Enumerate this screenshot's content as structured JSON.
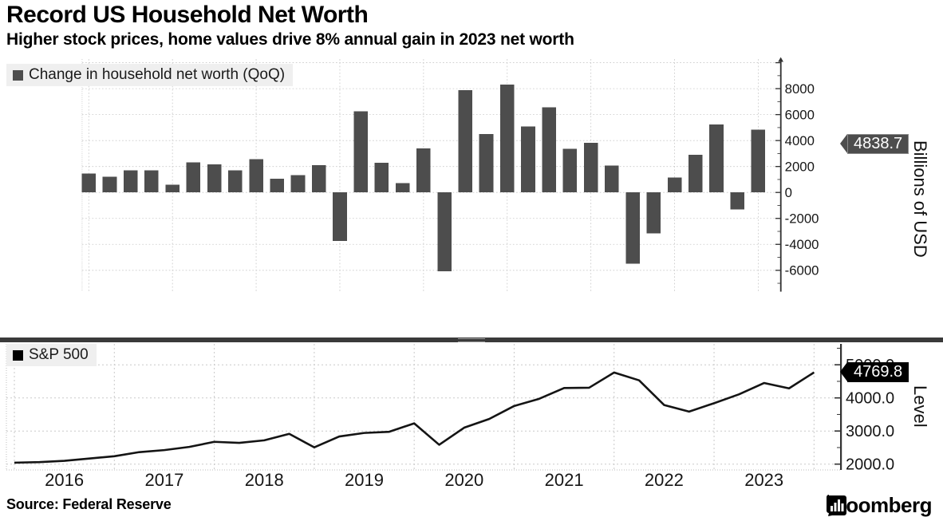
{
  "header": {
    "title": "Record US Household Net Worth",
    "subtitle": "Higher stock prices, home values drive 8% annual gain in 2023 net worth"
  },
  "footer": {
    "source": "Source: Federal Reserve",
    "brand": "Bloomberg",
    "brand_icon": "bloomberg-bug-icon"
  },
  "colors": {
    "bar": "#4d4d4d",
    "line": "#141414",
    "tag_top_bg": "#4d4d4d",
    "tag_bottom_bg": "#000000",
    "grid": "#c9c9c9",
    "axis": "#333333",
    "legend_bg": "#efefef",
    "separator": "#3a3a3a"
  },
  "x_axis": {
    "year_labels": [
      "2016",
      "2017",
      "2018",
      "2019",
      "2020",
      "2021",
      "2022",
      "2023"
    ]
  },
  "chart_data": [
    {
      "type": "bar",
      "legend": "Change in household net worth (QoQ)",
      "ylabel": "Billions of USD",
      "last_value_tag": "4838.7",
      "grid": true,
      "legend_position": "top-left",
      "ylim": [
        -7700,
        10300
      ],
      "yticks": [
        8000,
        6000,
        4000,
        2000,
        0,
        -2000,
        -4000,
        -6000
      ],
      "x": [
        "2015-Q4",
        "2016-Q1",
        "2016-Q2",
        "2016-Q3",
        "2016-Q4",
        "2017-Q1",
        "2017-Q2",
        "2017-Q3",
        "2017-Q4",
        "2018-Q1",
        "2018-Q2",
        "2018-Q3",
        "2018-Q4",
        "2019-Q1",
        "2019-Q2",
        "2019-Q3",
        "2019-Q4",
        "2020-Q1",
        "2020-Q2",
        "2020-Q3",
        "2020-Q4",
        "2021-Q1",
        "2021-Q2",
        "2021-Q3",
        "2021-Q4",
        "2022-Q1",
        "2022-Q2",
        "2022-Q3",
        "2022-Q4",
        "2023-Q1",
        "2023-Q2",
        "2023-Q3",
        "2023-Q4"
      ],
      "values": [
        1450,
        1200,
        1700,
        1700,
        600,
        2330,
        2160,
        1700,
        2560,
        1050,
        1320,
        2090,
        -3730,
        6240,
        2280,
        720,
        3410,
        -6070,
        7870,
        4490,
        8300,
        5080,
        6550,
        3360,
        3840,
        2080,
        -5500,
        -3160,
        1150,
        2910,
        5240,
        -1310,
        4838.7
      ]
    },
    {
      "type": "line",
      "legend": "S&P 500",
      "ylabel": "Level",
      "last_value_tag": "4769.8",
      "grid": true,
      "legend_position": "top-left",
      "ylim": [
        1820,
        5620
      ],
      "yticks": [
        5000,
        4000,
        3000,
        2000
      ],
      "ytick_labels": [
        "5000.0",
        "4000.0",
        "3000.0",
        "2000.0"
      ],
      "x": [
        "2015-Q4",
        "2016-Q1",
        "2016-Q2",
        "2016-Q3",
        "2016-Q4",
        "2017-Q1",
        "2017-Q2",
        "2017-Q3",
        "2017-Q4",
        "2018-Q1",
        "2018-Q2",
        "2018-Q3",
        "2018-Q4",
        "2019-Q1",
        "2019-Q2",
        "2019-Q3",
        "2019-Q4",
        "2020-Q1",
        "2020-Q2",
        "2020-Q3",
        "2020-Q4",
        "2021-Q1",
        "2021-Q2",
        "2021-Q3",
        "2021-Q4",
        "2022-Q1",
        "2022-Q2",
        "2022-Q3",
        "2022-Q4",
        "2023-Q1",
        "2023-Q2",
        "2023-Q3",
        "2023-Q4"
      ],
      "values": [
        2043.9,
        2059.7,
        2098.9,
        2168.3,
        2238.8,
        2362.7,
        2423.4,
        2519.4,
        2673.6,
        2640.9,
        2718.4,
        2914.0,
        2506.9,
        2834.4,
        2941.8,
        2976.7,
        3230.8,
        2584.6,
        3100.3,
        3363.0,
        3756.1,
        3972.9,
        4297.5,
        4307.5,
        4766.2,
        4530.4,
        3785.4,
        3585.6,
        3839.5,
        4109.3,
        4450.4,
        4288.1,
        4769.8
      ]
    }
  ]
}
